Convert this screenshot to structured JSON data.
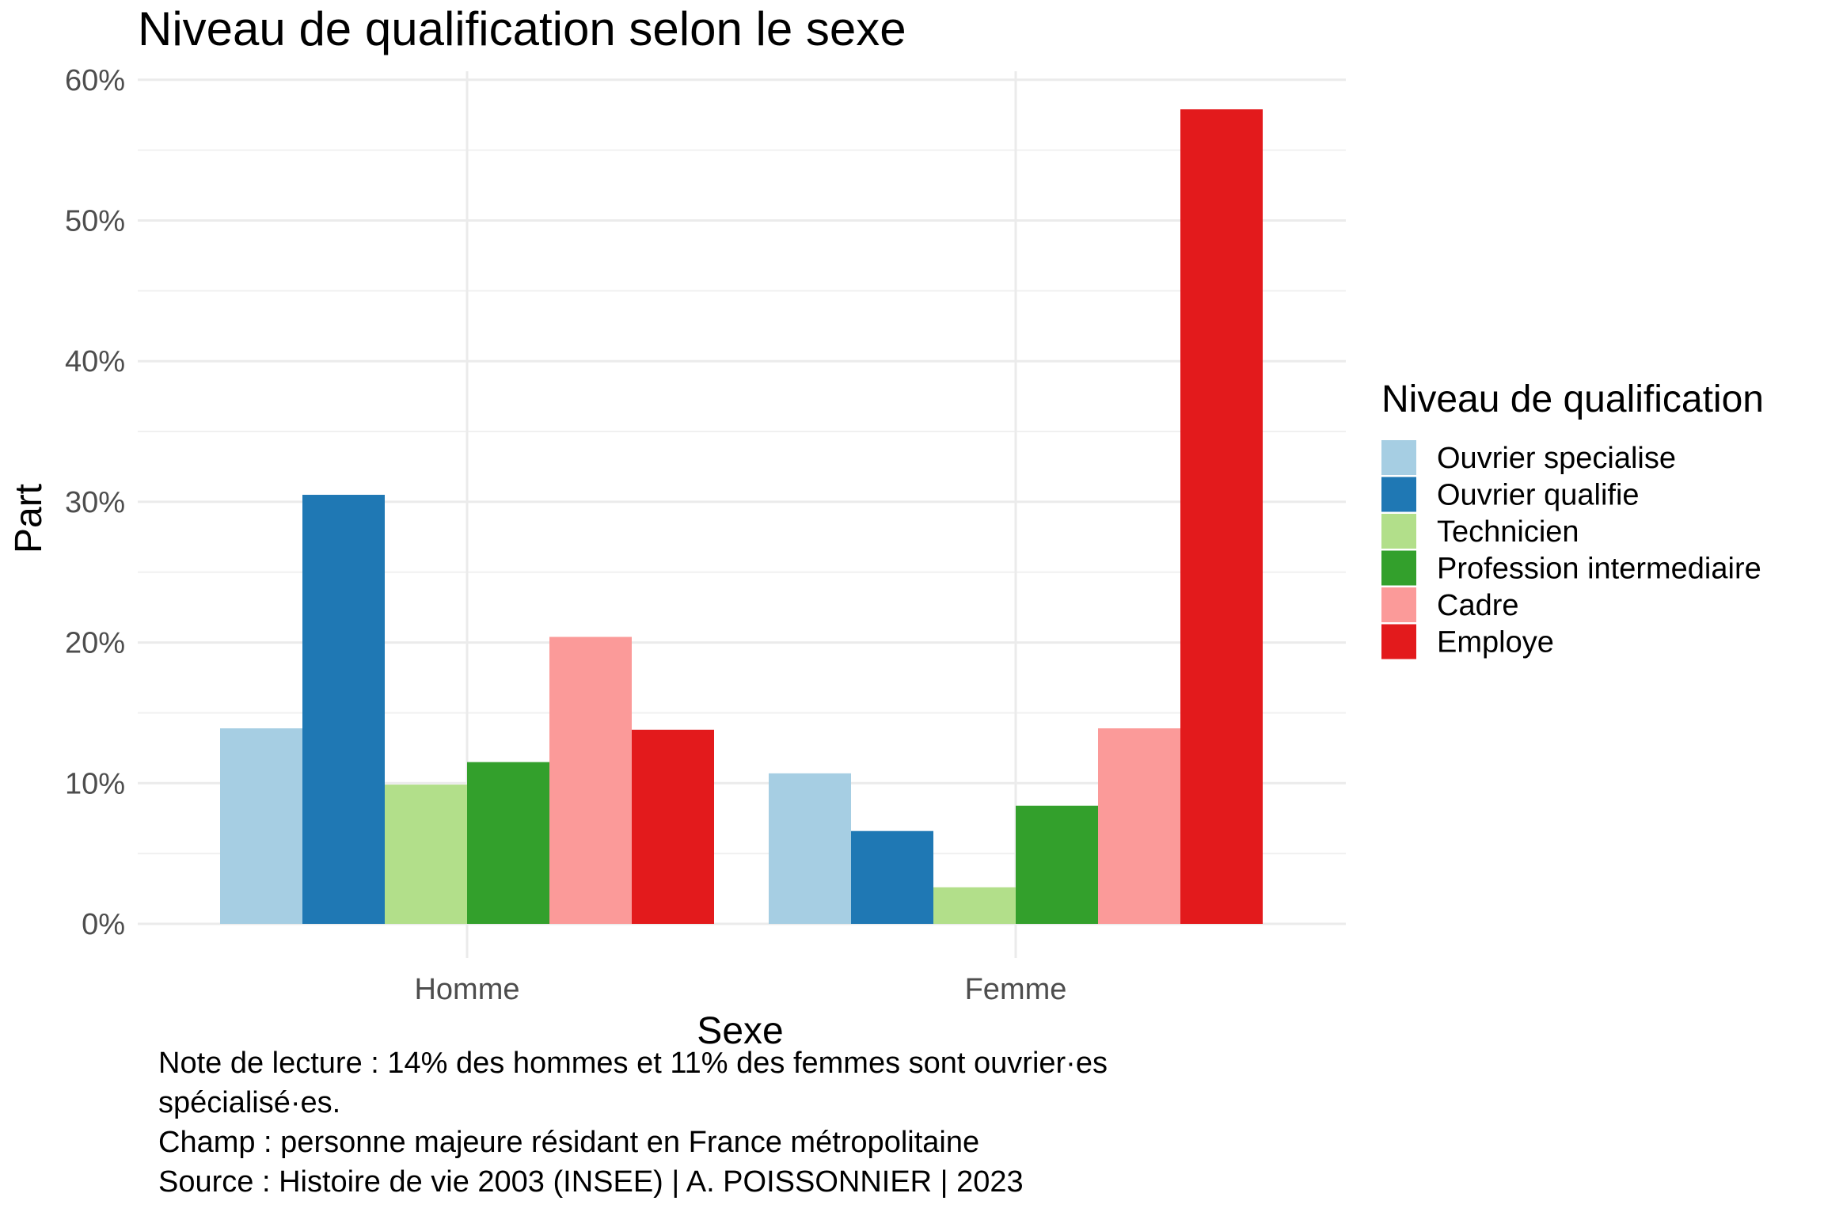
{
  "chart_data": {
    "type": "bar",
    "title": "Niveau de qualification selon le sexe",
    "xlabel": "Sexe",
    "ylabel": "Part",
    "categories": [
      "Homme",
      "Femme"
    ],
    "ylim": [
      0,
      0.6
    ],
    "yticks": [
      0,
      0.1,
      0.2,
      0.3,
      0.4,
      0.5,
      0.6
    ],
    "ytick_labels": [
      "0%",
      "10%",
      "20%",
      "30%",
      "40%",
      "50%",
      "60%"
    ],
    "grid": true,
    "legend": {
      "title": "Niveau de qualification",
      "position": "right"
    },
    "series": [
      {
        "name": "Ouvrier specialise",
        "color": "#a6cee3",
        "values": [
          0.139,
          0.107
        ]
      },
      {
        "name": "Ouvrier qualifie",
        "color": "#1f78b4",
        "values": [
          0.305,
          0.066
        ]
      },
      {
        "name": "Technicien",
        "color": "#b2df8a",
        "values": [
          0.099,
          0.026
        ]
      },
      {
        "name": "Profession intermediaire",
        "color": "#33a02c",
        "values": [
          0.115,
          0.084
        ]
      },
      {
        "name": "Cadre",
        "color": "#fb9a99",
        "values": [
          0.204,
          0.139
        ]
      },
      {
        "name": "Employe",
        "color": "#e31a1c",
        "values": [
          0.138,
          0.579
        ]
      }
    ]
  },
  "caption": {
    "line1": "Note de lecture : 14% des hommes et 11% des femmes sont ouvrier·es",
    "line2": "spécialisé·es.",
    "line3": "Champ : personne majeure résidant en France métropolitaine",
    "line4": "Source : Histoire de vie 2003 (INSEE) | A. POISSONNIER | 2023"
  }
}
